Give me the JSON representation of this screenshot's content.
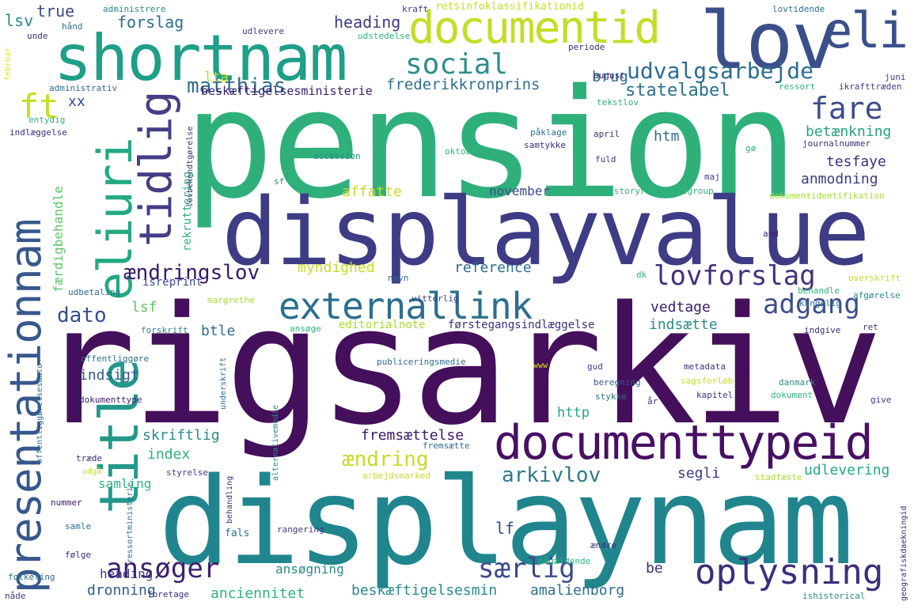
{
  "words": [
    {
      "text": "pension",
      "color": "#2fb07b"
    },
    {
      "text": "rigsarkiv",
      "color": "#440f5b"
    },
    {
      "text": "displayvalue",
      "color": "#3d3c84"
    },
    {
      "text": "displaynam",
      "color": "#21858e"
    },
    {
      "text": "shortnam",
      "color": "#1f9f88"
    },
    {
      "text": "lov",
      "color": "#3b4f8a"
    },
    {
      "text": "eli",
      "color": "#3b4f8a"
    },
    {
      "text": "documentid",
      "color": "#c4dd25"
    },
    {
      "text": "documenttypeid",
      "color": "#471063"
    },
    {
      "text": "externallink",
      "color": "#2b6f8e"
    },
    {
      "text": "presentationnam",
      "color": "#37588c"
    },
    {
      "text": "eliuri",
      "color": "#23a983"
    },
    {
      "text": "title",
      "color": "#22988b"
    },
    {
      "text": "tidlig",
      "color": "#433e85"
    },
    {
      "text": "ft",
      "color": "#c2df23"
    },
    {
      "text": "social",
      "color": "#2c8e8c"
    },
    {
      "text": "matthias",
      "color": "#2f6d8e"
    },
    {
      "text": "udvalgsarbejde",
      "color": "#2c6e8e"
    },
    {
      "text": "fare",
      "color": "#3e4c8a"
    },
    {
      "text": "lovforslag",
      "color": "#452f7c"
    },
    {
      "text": "adgang",
      "color": "#3c4e8a"
    },
    {
      "text": "ændringslov",
      "color": "#3a1a66"
    },
    {
      "text": "ansøger",
      "color": "#3d1e6e"
    },
    {
      "text": "oplysning",
      "color": "#3d2e7b"
    },
    {
      "text": "særlig",
      "color": "#3b4a8c"
    },
    {
      "text": "arkivlov",
      "color": "#2e7a8d"
    },
    {
      "text": "ændring",
      "color": "#c9d92a"
    },
    {
      "text": "dato",
      "color": "#354f8b"
    },
    {
      "text": "frederikkronprins",
      "color": "#2e708e"
    },
    {
      "text": "beskæftigelsesministerie",
      "color": "#3b1b6a"
    },
    {
      "text": "statelabel",
      "color": "#2b6f8e"
    },
    {
      "text": "brug",
      "color": "#2d6c8e"
    },
    {
      "text": "lta",
      "color": "#c2df23"
    },
    {
      "text": "heading",
      "color": "#3c3c84"
    },
    {
      "text": "forslag",
      "color": "#2d6f8e"
    },
    {
      "text": "true",
      "color": "#3e4c8a"
    },
    {
      "text": "lsv",
      "color": "#2a8a8c"
    },
    {
      "text": "xx",
      "color": "#2f4d8b"
    },
    {
      "text": "betænkning",
      "color": "#26a186"
    },
    {
      "text": "tesfaye",
      "color": "#3b2f7c"
    },
    {
      "text": "anmodning",
      "color": "#3b3d85"
    },
    {
      "text": "htm",
      "color": "#2d6f8e"
    },
    {
      "text": "affatte",
      "color": "#c8d92a"
    },
    {
      "text": "november",
      "color": "#3b4a8c"
    },
    {
      "text": "rekruttering",
      "color": "#2db27d"
    },
    {
      "text": "færdigbehandle",
      "color": "#5ac864"
    },
    {
      "text": "myndighed",
      "color": "#c2df23"
    },
    {
      "text": "reference",
      "color": "#2c6e8e"
    },
    {
      "text": "vedtage",
      "color": "#3b1b6a"
    },
    {
      "text": "indsætte",
      "color": "#2a8a8c"
    },
    {
      "text": "lsf",
      "color": "#5ac864"
    },
    {
      "text": "btle",
      "color": "#2d6f8e"
    },
    {
      "text": "indsigt",
      "color": "#38598c"
    },
    {
      "text": "http",
      "color": "#22a785"
    },
    {
      "text": "skriftlig",
      "color": "#2b8a8c"
    },
    {
      "text": "fremsættelse",
      "color": "#3a1a66"
    },
    {
      "text": "index",
      "color": "#2db27d"
    },
    {
      "text": "segli",
      "color": "#3b3d85"
    },
    {
      "text": "udlevering",
      "color": "#23a983"
    },
    {
      "text": "samling",
      "color": "#2db27d"
    },
    {
      "text": "lf",
      "color": "#2f4d8b"
    },
    {
      "text": "ansøgning",
      "color": "#2a8a8c"
    },
    {
      "text": "be",
      "color": "#3b2f7c"
    },
    {
      "text": "heading",
      "color": "#3c3c84"
    },
    {
      "text": "dronning",
      "color": "#2c5d8c"
    },
    {
      "text": "anciennitet",
      "color": "#2db27d"
    },
    {
      "text": "beskæftigelsesmin",
      "color": "#2a8a8c"
    },
    {
      "text": "amalienborg",
      "color": "#2c6e8e"
    },
    {
      "text": "isreprint",
      "color": "#3b4a8c"
    },
    {
      "text": "udbetaling",
      "color": "#2d6f8e"
    },
    {
      "text": "margrethe",
      "color": "#a8db34"
    },
    {
      "text": "forskrift",
      "color": "#2a8a8c"
    },
    {
      "text": "ansøge",
      "color": "#2db27d"
    },
    {
      "text": "editorialnote",
      "color": "#a8db34"
    },
    {
      "text": "førstegangsindlæggelse",
      "color": "#3b2f7c"
    },
    {
      "text": "offentliggøre",
      "color": "#2b6f8e"
    },
    {
      "text": "dokumenttype",
      "color": "#3b1b6a"
    },
    {
      "text": "underskrift",
      "color": "#2b6f8e"
    },
    {
      "text": "publiceringsmedie",
      "color": "#2c6e8e"
    },
    {
      "text": "www",
      "color": "#dde318"
    },
    {
      "text": "gud",
      "color": "#3b3d85"
    },
    {
      "text": "beregning",
      "color": "#38598c"
    },
    {
      "text": "stykke",
      "color": "#2c6e8e"
    },
    {
      "text": "år",
      "color": "#3b2f7c"
    },
    {
      "text": "sagsforløb",
      "color": "#c2df23"
    },
    {
      "text": "kapitel",
      "color": "#3b2f7c"
    },
    {
      "text": "dokument",
      "color": "#2db27d"
    },
    {
      "text": "danmark",
      "color": "#2a8a8c"
    },
    {
      "text": "metadata",
      "color": "#3b2f7c"
    },
    {
      "text": "give",
      "color": "#3b3d85"
    },
    {
      "text": "alternativemedie",
      "color": "#2a8a8c"
    },
    {
      "text": "fremsætte",
      "color": "#2c6e8e"
    },
    {
      "text": "arbejdsmarked",
      "color": "#c8d92a"
    },
    {
      "text": "stadfæste",
      "color": "#a8db34"
    },
    {
      "text": "styrelse",
      "color": "#3b3d85"
    },
    {
      "text": "udgå",
      "color": "#c2df23"
    },
    {
      "text": "træde",
      "color": "#3b2f7c"
    },
    {
      "text": "nummer",
      "color": "#3b1b6a"
    },
    {
      "text": "samle",
      "color": "#2c6e8e"
    },
    {
      "text": "følge",
      "color": "#3b2f7c"
    },
    {
      "text": "folketing",
      "color": "#2c6e8e"
    },
    {
      "text": "nåde",
      "color": "#3b3d85"
    },
    {
      "text": "foretage",
      "color": "#3b2f7c"
    },
    {
      "text": "ishistorical",
      "color": "#2a8a8c"
    },
    {
      "text": "pågældende",
      "color": "#2db27d"
    },
    {
      "text": "ændre",
      "color": "#3b2f7c"
    },
    {
      "text": "rangering",
      "color": "#3b3d85"
    },
    {
      "text": "fals",
      "color": "#2c6e8e"
    },
    {
      "text": "behandling",
      "color": "#3b2f7c"
    },
    {
      "text": "ressortministerie",
      "color": "#2c6e8e"
    },
    {
      "text": "offentliggørelsesdato",
      "color": "#2c6e8e"
    },
    {
      "text": "geografiskdaekningid",
      "color": "#3b2f7c"
    },
    {
      "text": "administrere",
      "color": "#2a8a8c"
    },
    {
      "text": "kraft",
      "color": "#3b3d85"
    },
    {
      "text": "retsinfoklassifikationid",
      "color": "#c2df23"
    },
    {
      "text": "lovtidende",
      "color": "#2c6e8e"
    },
    {
      "text": "unde",
      "color": "#3b2f7c"
    },
    {
      "text": "hånd",
      "color": "#2c6e8e"
    },
    {
      "text": "udlevere",
      "color": "#3b3d85"
    },
    {
      "text": "udstedelse",
      "color": "#2db27d"
    },
    {
      "text": "periode",
      "color": "#3b2f7c"
    },
    {
      "text": "februar",
      "color": "#dde318"
    },
    {
      "text": "juni",
      "color": "#3b3d85"
    },
    {
      "text": "august",
      "color": "#3b1b6a"
    },
    {
      "text": "ressort",
      "color": "#2db27d"
    },
    {
      "text": "ikrafttræden",
      "color": "#3b3d85"
    },
    {
      "text": "administrativ",
      "color": "#2c6e8e"
    },
    {
      "text": "entydig",
      "color": "#2db27d"
    },
    {
      "text": "indlæggelse",
      "color": "#3b2f7c"
    },
    {
      "text": "tekstlov",
      "color": "#2db27d"
    },
    {
      "text": "påklage",
      "color": "#2c6e8e"
    },
    {
      "text": "samtykke",
      "color": "#3b2f7c"
    },
    {
      "text": "april",
      "color": "#3b2f7c"
    },
    {
      "text": "accession",
      "color": "#2a8a8c"
    },
    {
      "text": "oktober",
      "color": "#2db27d"
    },
    {
      "text": "fuld",
      "color": "#3b3d85"
    },
    {
      "text": "gø",
      "color": "#2db27d"
    },
    {
      "text": "journalnummer",
      "color": "#3b2f7c"
    },
    {
      "text": "maj",
      "color": "#3b3d85"
    },
    {
      "text": "sf",
      "color": "#2a8a8c"
    },
    {
      "text": "casehistoryreferencegroup",
      "color": "#2db27d"
    },
    {
      "text": "dokumentidentifikation",
      "color": "#a8db34"
    },
    {
      "text": "lovbekendtgørelse",
      "color": "#3b2f7c"
    },
    {
      "text": "and",
      "color": "#3b1b6a"
    },
    {
      "text": "navn",
      "color": "#2c6e8e"
    },
    {
      "text": "vitterlig",
      "color": "#3b3d85"
    },
    {
      "text": "dk",
      "color": "#2db27d"
    },
    {
      "text": "overskrift",
      "color": "#c2df23"
    },
    {
      "text": "kongelig",
      "color": "#2c6e8e"
    },
    {
      "text": "behandle",
      "color": "#2db27d"
    },
    {
      "text": "afgørelse",
      "color": "#2a8a8c"
    },
    {
      "text": "indgive",
      "color": "#3b2f7c"
    },
    {
      "text": "ret",
      "color": "#3b3d85"
    }
  ]
}
